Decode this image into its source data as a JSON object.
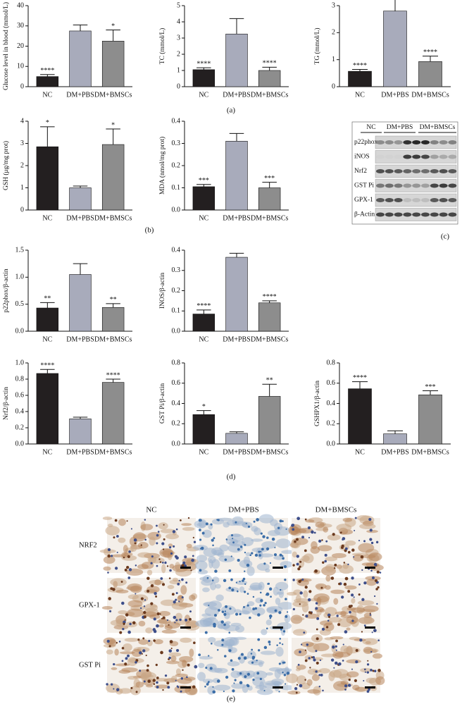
{
  "chart_data": [
    {
      "type": "bar",
      "ylabel": "Glucose level in blood (mmol/L)",
      "categories": [
        "NC",
        "DM+PBS",
        "DM+BMSCs"
      ],
      "values": [
        5,
        27.5,
        22.5
      ],
      "errors": [
        1,
        3,
        5.5
      ],
      "annotations": [
        "****",
        null,
        "*"
      ],
      "colors": [
        "#231f20",
        "#a8abbb",
        "#8d8d8d"
      ],
      "ylim": [
        0,
        40
      ],
      "yticks": [
        0,
        10,
        20,
        30,
        40
      ]
    },
    {
      "type": "bar",
      "ylabel": "TC (mmol/L)",
      "categories": [
        "NC",
        "DM+PBS",
        "DM+BMSCs"
      ],
      "values": [
        1.05,
        3.25,
        1.0
      ],
      "errors": [
        0.12,
        0.95,
        0.2
      ],
      "annotations": [
        "****",
        null,
        "****"
      ],
      "colors": [
        "#231f20",
        "#a8abbb",
        "#8d8d8d"
      ],
      "ylim": [
        0,
        5
      ],
      "yticks": [
        0,
        1,
        2,
        3,
        4,
        5
      ]
    },
    {
      "type": "bar",
      "ylabel": "TG (mmol/L)",
      "categories": [
        "NC",
        "DM+PBS",
        "DM+BMSCs"
      ],
      "values": [
        0.57,
        2.8,
        0.93
      ],
      "errors": [
        0.07,
        0.45,
        0.2
      ],
      "annotations": [
        "****",
        null,
        "****"
      ],
      "colors": [
        "#231f20",
        "#a8abbb",
        "#8d8d8d"
      ],
      "ylim": [
        0,
        3
      ],
      "yticks": [
        0,
        1,
        2,
        3
      ]
    },
    {
      "type": "bar",
      "ylabel": "GSH (μg/mg prot)",
      "categories": [
        "NC",
        "DM+PBS",
        "DM+BMSCs"
      ],
      "values": [
        2.85,
        1.0,
        2.95
      ],
      "errors": [
        0.9,
        0.08,
        0.7
      ],
      "annotations": [
        "*",
        null,
        "*"
      ],
      "colors": [
        "#231f20",
        "#a8abbb",
        "#8d8d8d"
      ],
      "ylim": [
        0,
        4
      ],
      "yticks": [
        0,
        1,
        2,
        3,
        4
      ]
    },
    {
      "type": "bar",
      "ylabel": "MDA (nmol/mg prot)",
      "categories": [
        "NC",
        "DM+PBS",
        "DM+BMSCs"
      ],
      "values": [
        0.105,
        0.31,
        0.1
      ],
      "errors": [
        0.01,
        0.035,
        0.025
      ],
      "annotations": [
        "***",
        null,
        "***"
      ],
      "colors": [
        "#231f20",
        "#a8abbb",
        "#8d8d8d"
      ],
      "ylim": [
        0,
        0.4
      ],
      "yticks": [
        {
          "value": 0,
          "label": "0.0"
        },
        0.1,
        0.2,
        0.3,
        0.4
      ]
    },
    {
      "type": "bar",
      "ylabel": "p22phox/β-actin",
      "categories": [
        "NC",
        "DM+PBS",
        "DM+BMSCs"
      ],
      "values": [
        0.43,
        1.05,
        0.44
      ],
      "errors": [
        0.1,
        0.2,
        0.07
      ],
      "annotations": [
        "**",
        null,
        "**"
      ],
      "colors": [
        "#231f20",
        "#a8abbb",
        "#8d8d8d"
      ],
      "ylim": [
        0,
        1.5
      ],
      "yticks": [
        {
          "value": 0,
          "label": "0.0"
        },
        0.5,
        {
          "value": 1,
          "label": "1.0"
        },
        1.5
      ]
    },
    {
      "type": "bar",
      "ylabel": "INOS/β-actin",
      "categories": [
        "NC",
        "DM+PBS",
        "DM+BMSCs"
      ],
      "values": [
        0.085,
        0.365,
        0.14
      ],
      "errors": [
        0.02,
        0.02,
        0.01
      ],
      "annotations": [
        "****",
        null,
        "****"
      ],
      "colors": [
        "#231f20",
        "#a8abbb",
        "#8d8d8d"
      ],
      "ylim": [
        0,
        0.4
      ],
      "yticks": [
        {
          "value": 0,
          "label": "0.0"
        },
        0.1,
        0.2,
        0.3,
        0.4
      ]
    },
    {
      "type": "bar",
      "ylabel": "Nrf2/β-actin",
      "categories": [
        "NC",
        "DM+PBS",
        "DM+BMSCs"
      ],
      "values": [
        0.87,
        0.31,
        0.76
      ],
      "errors": [
        0.05,
        0.02,
        0.04
      ],
      "annotations": [
        "****",
        null,
        "****"
      ],
      "colors": [
        "#231f20",
        "#a8abbb",
        "#8d8d8d"
      ],
      "ylim": [
        0,
        1
      ],
      "yticks": [
        {
          "value": 0,
          "label": "0.0"
        },
        0.2,
        0.4,
        0.6,
        0.8,
        {
          "value": 1,
          "label": "1.0"
        }
      ]
    },
    {
      "type": "bar",
      "ylabel": "GST Pi/β-actin",
      "categories": [
        "NC",
        "DM+PBS",
        "DM+BMSCs"
      ],
      "values": [
        0.29,
        0.105,
        0.47
      ],
      "errors": [
        0.04,
        0.015,
        0.12
      ],
      "annotations": [
        "*",
        null,
        "**"
      ],
      "colors": [
        "#231f20",
        "#a8abbb",
        "#8d8d8d"
      ],
      "ylim": [
        0,
        0.8
      ],
      "yticks": [
        {
          "value": 0,
          "label": "0.0"
        },
        0.2,
        0.4,
        0.6,
        0.8
      ]
    },
    {
      "type": "bar",
      "ylabel": "GSHPX1/β-actin",
      "categories": [
        "NC",
        "DM+PBS",
        "DM+BMSCs"
      ],
      "values": [
        0.545,
        0.1,
        0.485
      ],
      "errors": [
        0.07,
        0.03,
        0.04
      ],
      "annotations": [
        "****",
        null,
        "***"
      ],
      "colors": [
        "#231f20",
        "#a8abbb",
        "#8d8d8d"
      ],
      "ylim": [
        0,
        0.8
      ],
      "yticks": [
        {
          "value": 0,
          "label": "0.0"
        },
        0.2,
        0.4,
        0.6,
        0.8
      ]
    }
  ],
  "panel_labels": [
    "(a)",
    "(b)",
    "(c)",
    "(d)",
    "(e)"
  ],
  "blot": {
    "groups": [
      "NC",
      "DM+PBS",
      "DM+BMSCs"
    ],
    "rows": [
      "p22phox",
      "iNOS",
      "Nrf2",
      "GST Pi",
      "GPX-1",
      "β-Actin"
    ]
  },
  "histology": {
    "columns": [
      "NC",
      "DM+PBS",
      "DM+BMSCs"
    ],
    "rows": [
      "NRF2",
      "GPX-1",
      "GST Pi"
    ]
  }
}
